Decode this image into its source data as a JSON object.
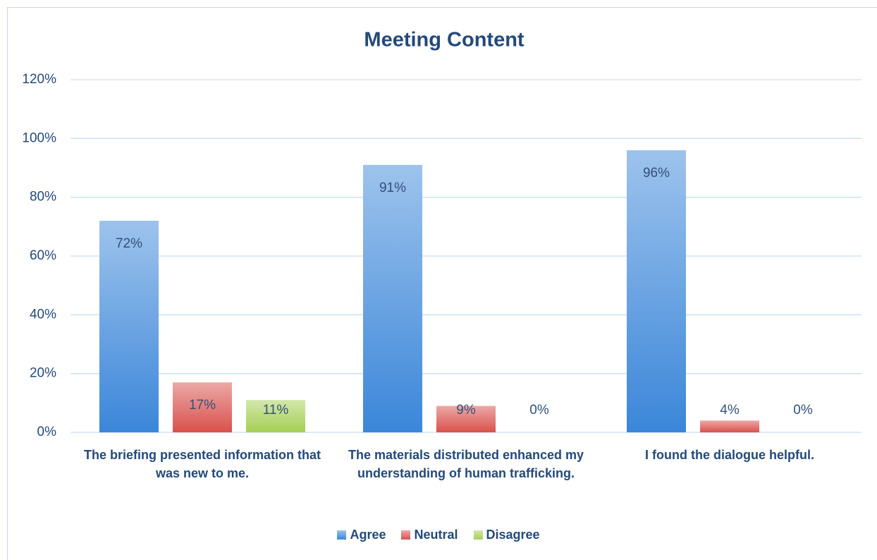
{
  "chart_data": {
    "type": "bar",
    "title": "Meeting Content",
    "categories": [
      "The briefing presented information that was new to me.",
      "The materials distributed enhanced my understanding of human trafficking.",
      "I found the dialogue helpful."
    ],
    "series": [
      {
        "name": "Agree",
        "color": "#3b86d9",
        "values": [
          72,
          91,
          96
        ],
        "value_labels": [
          "72%",
          "91%",
          "96%"
        ]
      },
      {
        "name": "Neutral",
        "color": "#d9514c",
        "values": [
          17,
          9,
          4
        ],
        "value_labels": [
          "17%",
          "9%",
          "4%"
        ]
      },
      {
        "name": "Disagree",
        "color": "#a6cf55",
        "values": [
          11,
          0,
          0
        ],
        "value_labels": [
          "11%",
          "0%",
          "0%"
        ]
      }
    ],
    "ylim": [
      0,
      120
    ],
    "yticks": [
      {
        "value": 0,
        "label": "0%"
      },
      {
        "value": 20,
        "label": "20%"
      },
      {
        "value": 40,
        "label": "40%"
      },
      {
        "value": 60,
        "label": "60%"
      },
      {
        "value": 80,
        "label": "80%"
      },
      {
        "value": 100,
        "label": "100%"
      },
      {
        "value": 120,
        "label": "120%"
      }
    ],
    "grid": true,
    "legend": "bottom"
  }
}
